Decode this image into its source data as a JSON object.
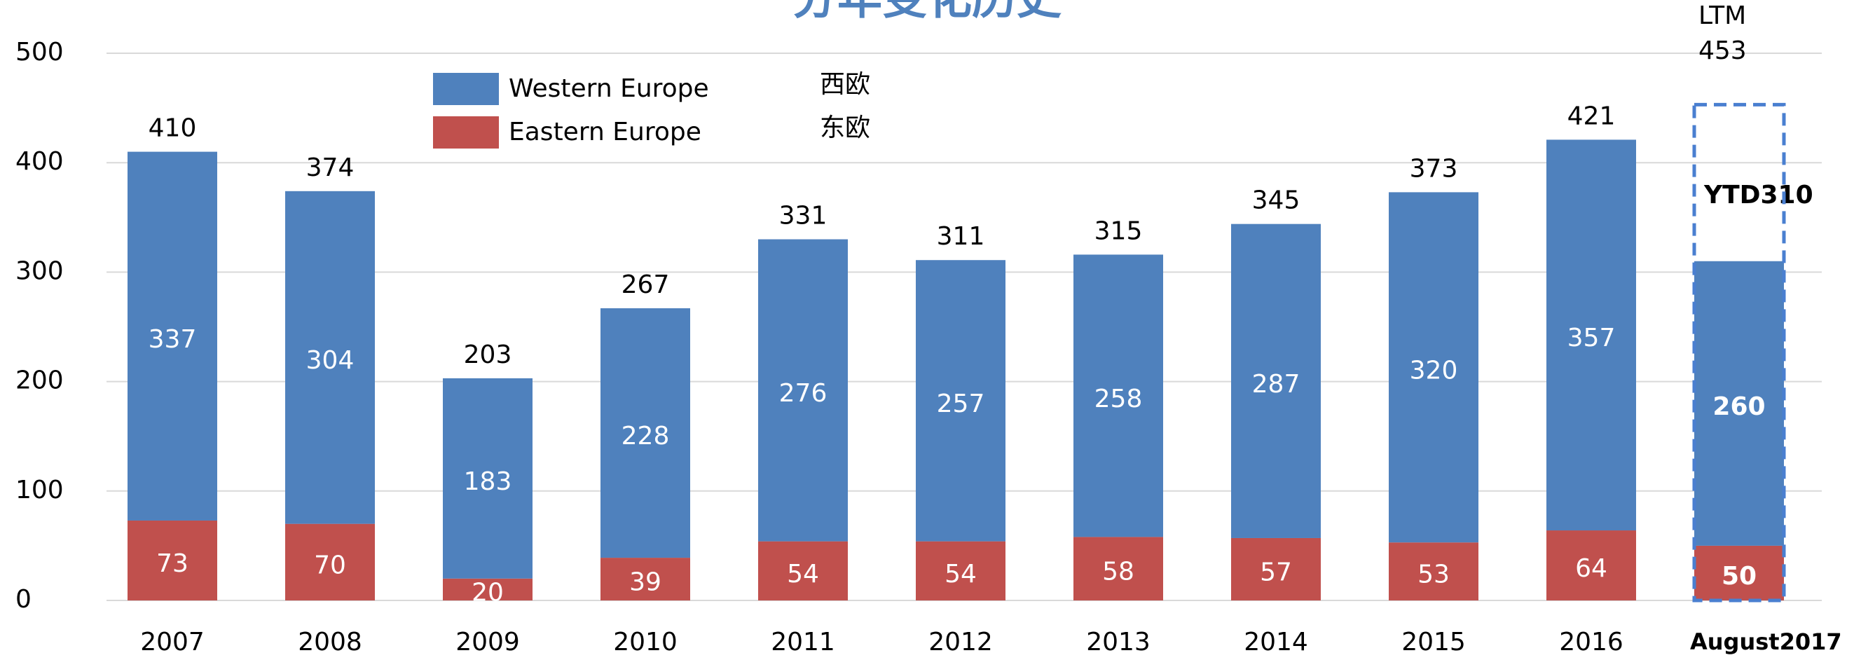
{
  "chart_data": {
    "type": "stacked_bar",
    "title": "分年变化历史",
    "categories": [
      "2007",
      "2008",
      "2009",
      "2010",
      "2011",
      "2012",
      "2013",
      "2014",
      "2015",
      "2016",
      "August2017"
    ],
    "series": [
      {
        "name": "Eastern Europe",
        "label_zh": "东欧",
        "color": "#c0504d",
        "values": [
          73,
          70,
          20,
          39,
          54,
          54,
          58,
          57,
          53,
          64,
          50
        ]
      },
      {
        "name": "Western Europe",
        "label_zh": "西欧",
        "color": "#4f81bd",
        "values": [
          337,
          304,
          183,
          228,
          276,
          257,
          258,
          287,
          320,
          357,
          260
        ]
      }
    ],
    "totals": {
      "values": [
        410,
        374,
        203,
        267,
        331,
        311,
        315,
        345,
        373,
        421,
        310
      ],
      "value_labels": [
        "410",
        "374",
        "203",
        "267",
        "331",
        "311",
        "315",
        "345",
        "373",
        "421",
        "YTD310"
      ]
    },
    "annotation": {
      "label": "LTM",
      "value": 453
    },
    "ylim": [
      0,
      500
    ],
    "yticks": [
      0,
      100,
      200,
      300,
      400,
      500
    ],
    "grid": true
  }
}
